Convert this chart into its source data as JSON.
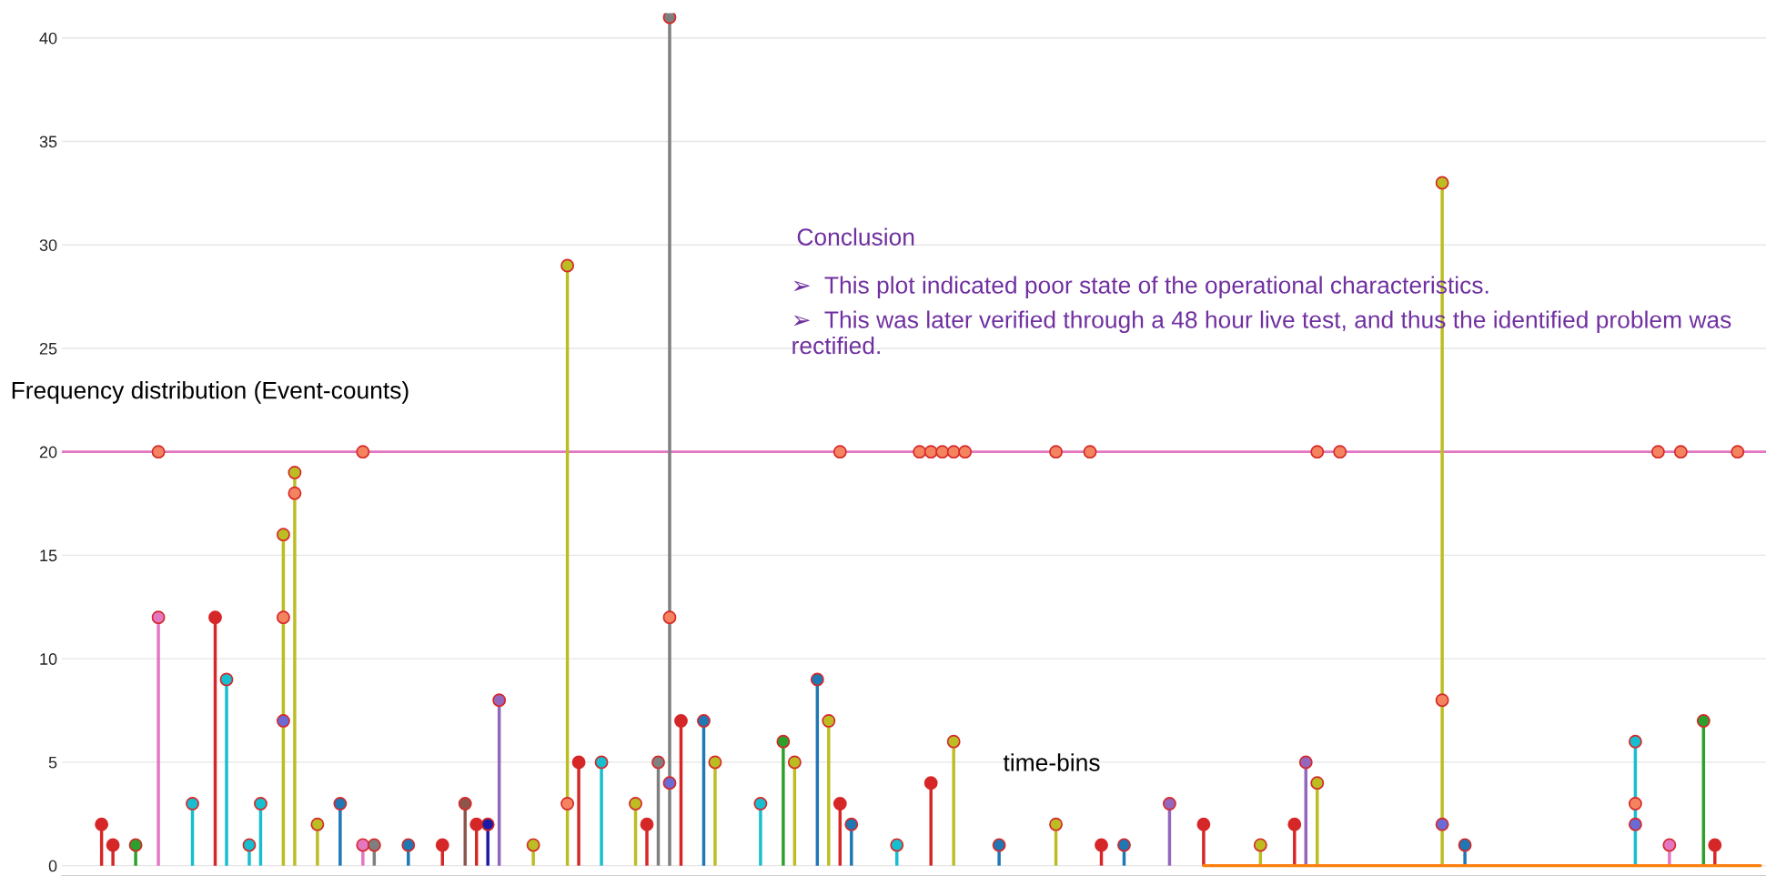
{
  "chart_data": {
    "type": "lollipop",
    "ylabel": "Frequency distribution (Event-counts)",
    "xlabel": "time-bins",
    "annotations": [
      "Conclusion",
      "➢  This plot indicated poor state of the operational characteristics.",
      "➢  This was later verified through a 48 hour live test, and thus the identified problem was rectified."
    ],
    "categories": [
      null,
      null,
      null,
      null,
      null,
      null,
      null,
      null,
      null,
      null,
      null,
      null,
      null,
      null,
      null,
      null,
      null,
      null,
      null,
      null,
      null,
      null,
      null,
      null,
      null,
      null,
      null,
      null,
      null,
      null,
      null,
      null,
      null,
      null,
      null,
      null,
      null,
      null,
      null,
      null,
      null,
      null,
      null,
      null,
      null,
      null,
      null,
      null,
      null,
      null,
      null,
      null,
      null,
      null,
      null,
      null,
      null,
      null,
      null,
      null,
      null,
      null,
      null,
      null,
      null,
      null,
      null,
      null,
      null,
      null,
      null,
      null,
      null,
      null,
      null,
      null,
      null,
      null,
      null,
      null,
      null,
      null,
      null,
      null,
      null,
      null,
      null,
      null,
      null,
      null,
      null,
      null,
      null,
      null,
      null,
      null,
      null,
      null,
      null,
      null,
      null,
      null,
      null,
      null,
      null,
      null,
      null,
      null,
      null,
      null,
      null,
      null,
      null,
      null,
      null,
      null,
      null,
      null,
      null,
      null,
      null,
      null,
      null,
      null,
      null,
      null,
      null,
      null,
      null,
      null,
      null,
      null,
      null,
      null,
      null,
      null,
      null,
      null,
      null,
      null,
      null,
      null,
      null,
      null,
      null,
      null,
      null,
      null,
      null,
      null
    ],
    "series": [
      {
        "values": [
          null,
          null,
          null,
          2,
          1,
          null,
          1,
          null,
          12,
          null,
          null,
          3,
          null,
          12,
          9,
          null,
          1,
          3,
          null,
          16,
          19,
          null,
          2,
          null,
          3,
          null,
          1,
          1,
          null,
          null,
          1,
          null,
          null,
          1,
          null,
          3,
          2,
          2,
          8,
          null,
          null,
          1,
          null,
          null,
          29,
          5,
          null,
          5,
          null,
          null,
          3,
          2,
          5,
          41,
          7,
          null,
          7,
          5,
          null,
          null,
          null,
          3,
          null,
          6,
          5,
          null,
          9,
          7,
          3,
          2,
          null,
          null,
          null,
          1,
          null,
          null,
          4,
          null,
          6,
          null,
          null,
          null,
          1,
          null,
          null,
          null,
          null,
          2,
          null,
          null,
          null,
          1,
          null,
          1,
          null,
          null,
          null,
          3,
          null,
          null,
          2,
          null,
          null,
          null,
          null,
          1,
          null,
          null,
          2,
          5,
          4,
          null,
          null,
          null,
          null,
          null,
          null,
          null,
          null,
          null,
          null,
          33,
          null,
          1,
          null,
          null,
          null,
          null,
          null,
          null,
          null,
          null,
          null,
          null,
          null,
          null,
          null,
          null,
          6,
          null,
          null,
          1,
          null,
          null,
          7,
          1,
          null,
          null,
          null,
          null
        ],
        "colors": [
          null,
          null,
          null,
          "#d62728",
          "#d62728",
          null,
          "#2ca02c",
          null,
          "#e377c2",
          null,
          null,
          "#17becf",
          null,
          "#d62728",
          "#17becf",
          null,
          "#17becf",
          "#17becf",
          null,
          "#bcbd22",
          "#bcbd22",
          null,
          "#bcbd22",
          null,
          "#1f77b4",
          null,
          "#e377c2",
          "#7f7f7f",
          null,
          null,
          "#1f77b4",
          null,
          null,
          "#d62728",
          null,
          "#8c564b",
          "#d62728",
          "#1a1aa6",
          "#9467bd",
          null,
          null,
          "#bcbd22",
          null,
          null,
          "#bcbd22",
          "#d62728",
          null,
          "#17becf",
          null,
          null,
          "#bcbd22",
          "#d62728",
          "#7f7f7f",
          "#7f7f7f",
          "#d62728",
          null,
          "#1f77b4",
          "#bcbd22",
          null,
          null,
          null,
          "#17becf",
          null,
          "#2ca02c",
          "#bcbd22",
          null,
          "#1f77b4",
          "#bcbd22",
          "#d62728",
          "#1f77b4",
          null,
          null,
          null,
          "#17becf",
          null,
          null,
          "#d62728",
          null,
          "#bcbd22",
          null,
          null,
          null,
          "#1f77b4",
          null,
          null,
          null,
          null,
          "#bcbd22",
          null,
          null,
          null,
          "#d62728",
          null,
          "#1f77b4",
          null,
          null,
          null,
          "#9467bd",
          null,
          null,
          "#d62728",
          null,
          null,
          null,
          null,
          "#bcbd22",
          null,
          null,
          "#d62728",
          "#9467bd",
          "#bcbd22",
          null,
          null,
          null,
          null,
          null,
          null,
          null,
          null,
          null,
          null,
          "#bcbd22",
          null,
          "#1f77b4",
          null,
          null,
          null,
          null,
          null,
          null,
          null,
          null,
          null,
          null,
          null,
          null,
          null,
          null,
          "#17becf",
          null,
          null,
          "#e377c2",
          null,
          null,
          "#2ca02c",
          "#d62728",
          null,
          null,
          null,
          null
        ]
      },
      {
        "type": "scatter",
        "color": "#f4845f",
        "values": [
          null,
          null,
          null,
          null,
          null,
          null,
          null,
          null,
          null,
          null,
          null,
          null,
          null,
          null,
          null,
          null,
          null,
          null,
          null,
          12,
          18,
          null,
          null,
          null,
          null,
          null,
          null,
          null,
          null,
          null,
          null,
          null,
          null,
          null,
          null,
          null,
          null,
          null,
          null,
          null,
          null,
          null,
          null,
          null,
          3,
          null,
          null,
          null,
          null,
          null,
          null,
          null,
          null,
          12,
          null,
          null,
          null,
          null,
          null,
          null,
          null,
          null,
          null,
          null,
          null,
          null,
          null,
          null,
          null,
          null,
          null,
          null,
          null,
          null,
          null,
          null,
          null,
          null,
          null,
          null,
          null,
          null,
          null,
          null,
          null,
          null,
          null,
          null,
          null,
          null,
          null,
          null,
          null,
          null,
          null,
          null,
          null,
          null,
          null,
          null,
          null,
          null,
          null,
          null,
          null,
          null,
          null,
          null,
          null,
          null,
          null,
          null,
          null,
          null,
          null,
          null,
          null,
          null,
          null,
          null,
          null,
          8,
          null,
          null,
          null,
          null,
          null,
          null,
          null,
          null,
          null,
          null,
          null,
          null,
          null,
          null,
          null,
          null,
          3,
          null,
          null,
          null,
          null,
          null,
          null,
          null,
          null,
          null,
          null,
          null
        ]
      },
      {
        "type": "scatter",
        "color": "#6b6bd6",
        "values": [
          null,
          null,
          null,
          null,
          null,
          null,
          null,
          null,
          null,
          null,
          null,
          null,
          null,
          null,
          null,
          null,
          null,
          null,
          null,
          7,
          null,
          null,
          null,
          null,
          null,
          null,
          null,
          null,
          null,
          null,
          null,
          null,
          null,
          null,
          null,
          null,
          null,
          null,
          null,
          null,
          null,
          null,
          null,
          null,
          null,
          null,
          null,
          null,
          null,
          null,
          null,
          null,
          null,
          4,
          null,
          null,
          null,
          null,
          null,
          null,
          null,
          null,
          null,
          null,
          null,
          null,
          null,
          null,
          null,
          null,
          null,
          null,
          null,
          null,
          null,
          null,
          null,
          null,
          null,
          null,
          null,
          null,
          null,
          null,
          null,
          null,
          null,
          null,
          null,
          null,
          null,
          null,
          null,
          null,
          null,
          null,
          null,
          null,
          null,
          null,
          null,
          null,
          null,
          null,
          null,
          null,
          null,
          null,
          null,
          null,
          null,
          null,
          null,
          null,
          null,
          null,
          null,
          null,
          null,
          null,
          null,
          2,
          null,
          null,
          null,
          null,
          null,
          null,
          null,
          null,
          null,
          null,
          null,
          null,
          null,
          null,
          null,
          null,
          2,
          null,
          null,
          null,
          null,
          null,
          null,
          null,
          null,
          null,
          null,
          null
        ]
      },
      {
        "type": "scatter",
        "color": "#f4845f",
        "values": [
          null,
          null,
          null,
          null,
          null,
          null,
          null,
          null,
          20,
          null,
          null,
          null,
          null,
          null,
          null,
          null,
          null,
          null,
          null,
          null,
          null,
          null,
          null,
          null,
          null,
          null,
          20,
          null,
          null,
          null,
          null,
          null,
          null,
          null,
          null,
          null,
          null,
          null,
          null,
          null,
          null,
          null,
          null,
          null,
          null,
          null,
          null,
          null,
          null,
          null,
          null,
          null,
          null,
          null,
          null,
          null,
          null,
          null,
          null,
          null,
          null,
          null,
          null,
          null,
          null,
          null,
          null,
          null,
          20,
          null,
          null,
          null,
          null,
          null,
          null,
          20,
          20,
          20,
          20,
          20,
          null,
          null,
          null,
          null,
          null,
          null,
          null,
          20,
          null,
          null,
          20,
          null,
          null,
          null,
          null,
          null,
          null,
          null,
          null,
          null,
          null,
          null,
          null,
          null,
          null,
          null,
          null,
          null,
          null,
          null,
          20,
          null,
          20,
          null,
          null,
          null,
          null,
          null,
          null,
          null,
          null,
          null,
          null,
          null,
          null,
          null,
          null,
          null,
          null,
          null,
          null,
          null,
          null,
          null,
          null,
          null,
          null,
          null,
          null,
          null,
          20,
          null,
          20,
          null,
          null,
          null,
          null,
          20,
          null,
          null
        ]
      },
      {
        "type": "line",
        "color": "#ff7f0e",
        "marker": "none",
        "values": [
          null,
          null,
          null,
          null,
          null,
          null,
          null,
          null,
          null,
          null,
          null,
          null,
          null,
          null,
          null,
          null,
          null,
          null,
          null,
          null,
          null,
          null,
          null,
          null,
          null,
          null,
          null,
          null,
          null,
          null,
          null,
          null,
          null,
          null,
          null,
          null,
          null,
          null,
          null,
          null,
          null,
          null,
          null,
          null,
          null,
          null,
          null,
          null,
          null,
          null,
          null,
          null,
          null,
          null,
          null,
          null,
          null,
          null,
          null,
          null,
          null,
          null,
          null,
          null,
          null,
          null,
          null,
          null,
          null,
          null,
          null,
          null,
          null,
          null,
          null,
          null,
          null,
          null,
          null,
          null,
          null,
          null,
          null,
          null,
          null,
          null,
          null,
          null,
          null,
          null,
          null,
          null,
          null,
          null,
          null,
          null,
          null,
          null,
          null,
          null,
          0,
          0,
          0,
          0,
          0,
          0,
          0,
          0,
          0,
          0,
          0,
          0,
          0,
          0,
          0,
          0,
          0,
          0,
          0,
          0,
          0,
          0,
          0,
          0,
          0,
          0,
          0,
          0,
          0,
          0,
          0,
          0,
          0,
          0,
          0,
          0,
          0,
          0,
          0,
          0,
          0,
          0,
          0,
          0,
          0,
          0,
          0,
          0,
          0,
          0
        ]
      }
    ],
    "ref_lines": [
      {
        "axis": "y",
        "value": 20,
        "color": "#e377c2"
      }
    ],
    "ylim": [
      -0.5,
      41.2
    ],
    "yticks": [
      0,
      5,
      10,
      15,
      20,
      25,
      30,
      35,
      40
    ],
    "grid": "y",
    "marker": "circle",
    "tick_labels": "y"
  }
}
